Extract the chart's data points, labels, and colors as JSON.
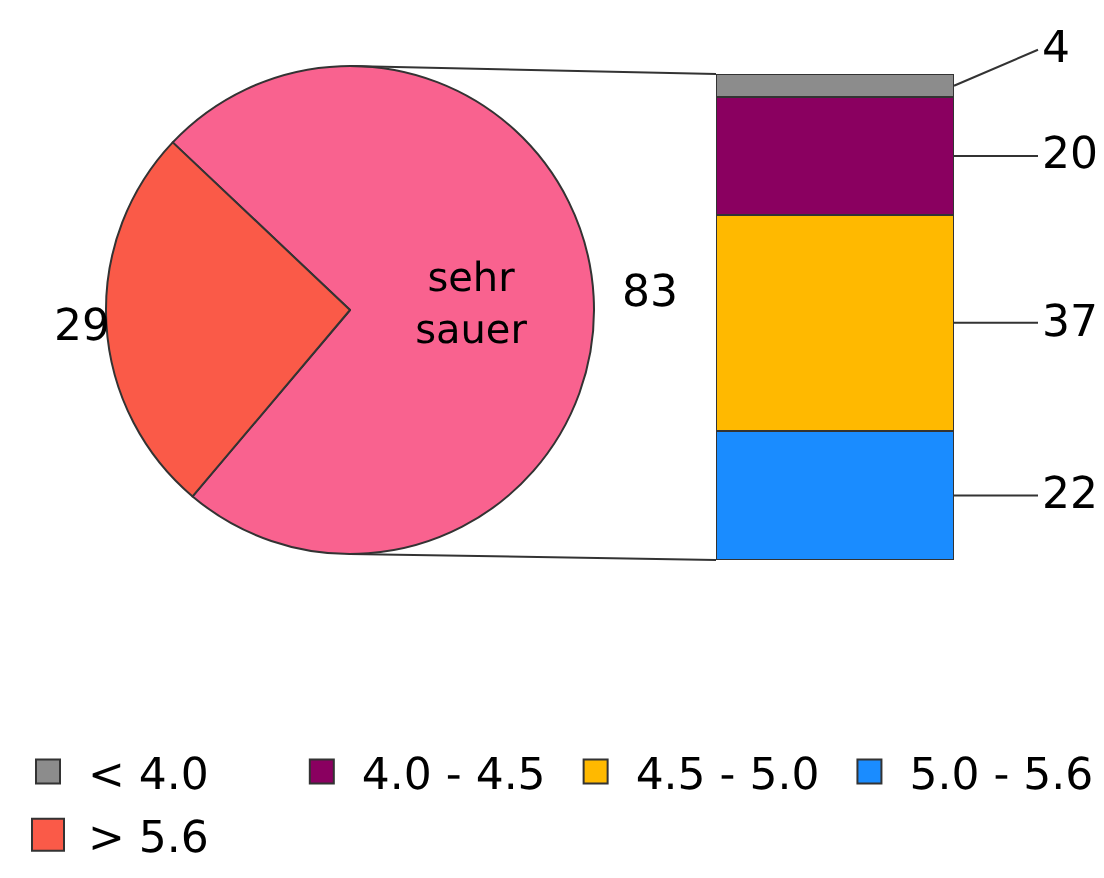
{
  "chart_data": [
    {
      "type": "pie",
      "categories": [
        "sehr sauer",
        "> 5.6"
      ],
      "values": [
        83,
        29
      ],
      "colors": [
        "#f9628f",
        "#fa5a48"
      ],
      "data_labels": true,
      "legend": "bottom"
    },
    {
      "type": "bar",
      "stacked": true,
      "categories": [
        null
      ],
      "series": [
        {
          "name": "5.0 - 5.6",
          "color": "#1a8cff",
          "values": [
            22
          ]
        },
        {
          "name": "4.5 - 5.0",
          "color": "#ffb900",
          "values": [
            37
          ]
        },
        {
          "name": "4.0 - 4.5",
          "color": "#8a0060",
          "values": [
            20
          ]
        },
        {
          "name": "< 4.0",
          "color": "#8c8c8c",
          "values": [
            4
          ]
        }
      ],
      "data_labels": true,
      "legend": "bottom"
    }
  ]
}
